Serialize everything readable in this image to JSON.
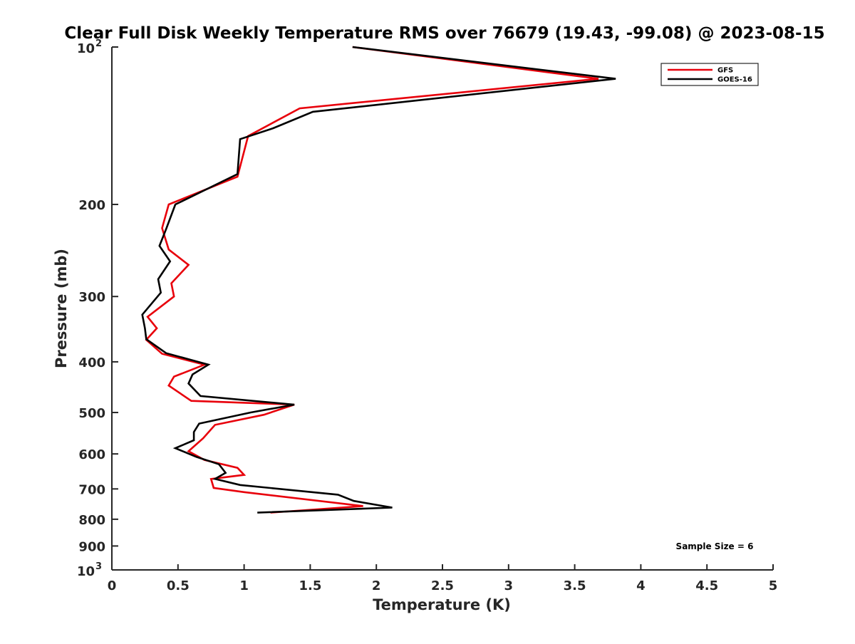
{
  "chart_data": {
    "type": "line",
    "title": "Clear Full Disk Weekly Temperature RMS over 76679 (19.43, -99.08) @ 2023-08-15",
    "xlabel": "Temperature (K)",
    "ylabel": "Pressure (mb)",
    "xlim": [
      0,
      5
    ],
    "ylim": [
      100,
      1000
    ],
    "y_scale": "log",
    "y_reversed": true,
    "grid": false,
    "legend_position": "top-right",
    "x_ticks": [
      {
        "value": 0,
        "label": "0"
      },
      {
        "value": 0.5,
        "label": "0.5"
      },
      {
        "value": 1,
        "label": "1"
      },
      {
        "value": 1.5,
        "label": "1.5"
      },
      {
        "value": 2,
        "label": "2"
      },
      {
        "value": 2.5,
        "label": "2.5"
      },
      {
        "value": 3,
        "label": "3"
      },
      {
        "value": 3.5,
        "label": "3.5"
      },
      {
        "value": 4,
        "label": "4"
      },
      {
        "value": 4.5,
        "label": "4.5"
      },
      {
        "value": 5,
        "label": "5"
      }
    ],
    "y_ticks": [
      {
        "value": 100,
        "base": "10",
        "exp": "2"
      },
      {
        "value": 200,
        "label": "200"
      },
      {
        "value": 300,
        "label": "300"
      },
      {
        "value": 400,
        "label": "400"
      },
      {
        "value": 500,
        "label": "500"
      },
      {
        "value": 600,
        "label": "600"
      },
      {
        "value": 700,
        "label": "700"
      },
      {
        "value": 800,
        "label": "800"
      },
      {
        "value": 900,
        "label": "900"
      },
      {
        "value": 1000,
        "base": "10",
        "exp": "3"
      }
    ],
    "series": [
      {
        "name": "GFS",
        "color": "#e8000b",
        "points": [
          [
            1.82,
            100
          ],
          [
            3.68,
            115
          ],
          [
            1.42,
            131
          ],
          [
            1.03,
            148
          ],
          [
            0.95,
            177
          ],
          [
            0.43,
            200
          ],
          [
            0.38,
            222
          ],
          [
            0.43,
            244
          ],
          [
            0.58,
            261
          ],
          [
            0.45,
            283
          ],
          [
            0.47,
            300
          ],
          [
            0.27,
            328
          ],
          [
            0.34,
            345
          ],
          [
            0.26,
            363
          ],
          [
            0.38,
            386
          ],
          [
            0.7,
            405
          ],
          [
            0.47,
            427
          ],
          [
            0.43,
            444
          ],
          [
            0.6,
            475
          ],
          [
            1.38,
            483
          ],
          [
            1.15,
            505
          ],
          [
            0.78,
            528
          ],
          [
            0.69,
            560
          ],
          [
            0.58,
            593
          ],
          [
            0.7,
            616
          ],
          [
            0.95,
            638
          ],
          [
            1.0,
            658
          ],
          [
            0.75,
            670
          ],
          [
            0.77,
            697
          ],
          [
            1.0,
            710
          ],
          [
            1.9,
            755
          ],
          [
            1.2,
            777
          ]
        ]
      },
      {
        "name": "GOES-16",
        "color": "#000000",
        "points": [
          [
            1.82,
            100
          ],
          [
            3.81,
            115
          ],
          [
            1.52,
            133
          ],
          [
            1.22,
            143
          ],
          [
            0.97,
            150
          ],
          [
            0.95,
            175
          ],
          [
            0.48,
            200
          ],
          [
            0.41,
            223
          ],
          [
            0.36,
            240
          ],
          [
            0.44,
            257
          ],
          [
            0.35,
            278
          ],
          [
            0.37,
            295
          ],
          [
            0.23,
            325
          ],
          [
            0.25,
            345
          ],
          [
            0.26,
            362
          ],
          [
            0.41,
            385
          ],
          [
            0.73,
            405
          ],
          [
            0.61,
            423
          ],
          [
            0.58,
            440
          ],
          [
            0.67,
            465
          ],
          [
            1.38,
            483
          ],
          [
            1.05,
            500
          ],
          [
            0.66,
            525
          ],
          [
            0.62,
            545
          ],
          [
            0.62,
            565
          ],
          [
            0.48,
            585
          ],
          [
            0.64,
            608
          ],
          [
            0.81,
            628
          ],
          [
            0.86,
            652
          ],
          [
            0.78,
            670
          ],
          [
            0.97,
            688
          ],
          [
            1.71,
            718
          ],
          [
            1.83,
            738
          ],
          [
            2.12,
            760
          ],
          [
            1.1,
            777
          ]
        ]
      }
    ],
    "annotations": [
      {
        "text": "Sample Size = 6"
      }
    ]
  }
}
